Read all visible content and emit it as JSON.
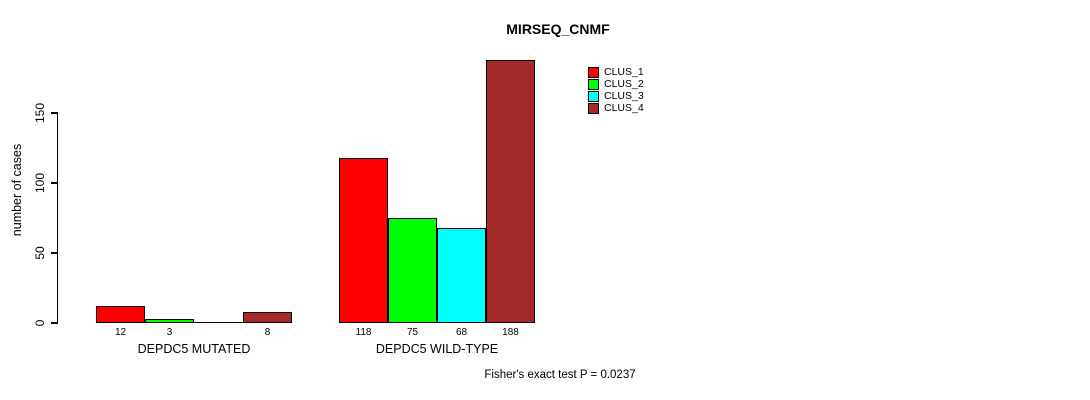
{
  "figure": {
    "background": "#FFFFFF"
  },
  "chart_data": {
    "type": "bar",
    "title": "MIRSEQ_CNMF",
    "xlabel": "",
    "ylabel": "number of cases",
    "ylim": [
      0,
      150
    ],
    "yticks": [
      "0",
      "50",
      "100",
      "150"
    ],
    "grid": false,
    "bar_border_color": "#000000",
    "categories": [
      "DEPDC5 MUTATED",
      "DEPDC5 WILD-TYPE"
    ],
    "series": [
      {
        "name": "CLUS_1",
        "color": "#FF0000",
        "values": [
          12,
          118
        ]
      },
      {
        "name": "CLUS_2",
        "color": "#00FF00",
        "values": [
          3,
          75
        ]
      },
      {
        "name": "CLUS_3",
        "color": "#00FFFF",
        "values": [
          0,
          68
        ]
      },
      {
        "name": "CLUS_4",
        "color": "#A52A2A",
        "values": [
          8,
          188
        ]
      }
    ],
    "bar_value_labels": [
      [
        "12",
        "3",
        "",
        "8"
      ],
      [
        "118",
        "75",
        "68",
        "188"
      ]
    ],
    "legend": {
      "position": "top-right",
      "entries": [
        "CLUS_1",
        "CLUS_2",
        "CLUS_3",
        "CLUS_4"
      ]
    },
    "annotation": "Fisher's exact test P = 0.0237"
  }
}
